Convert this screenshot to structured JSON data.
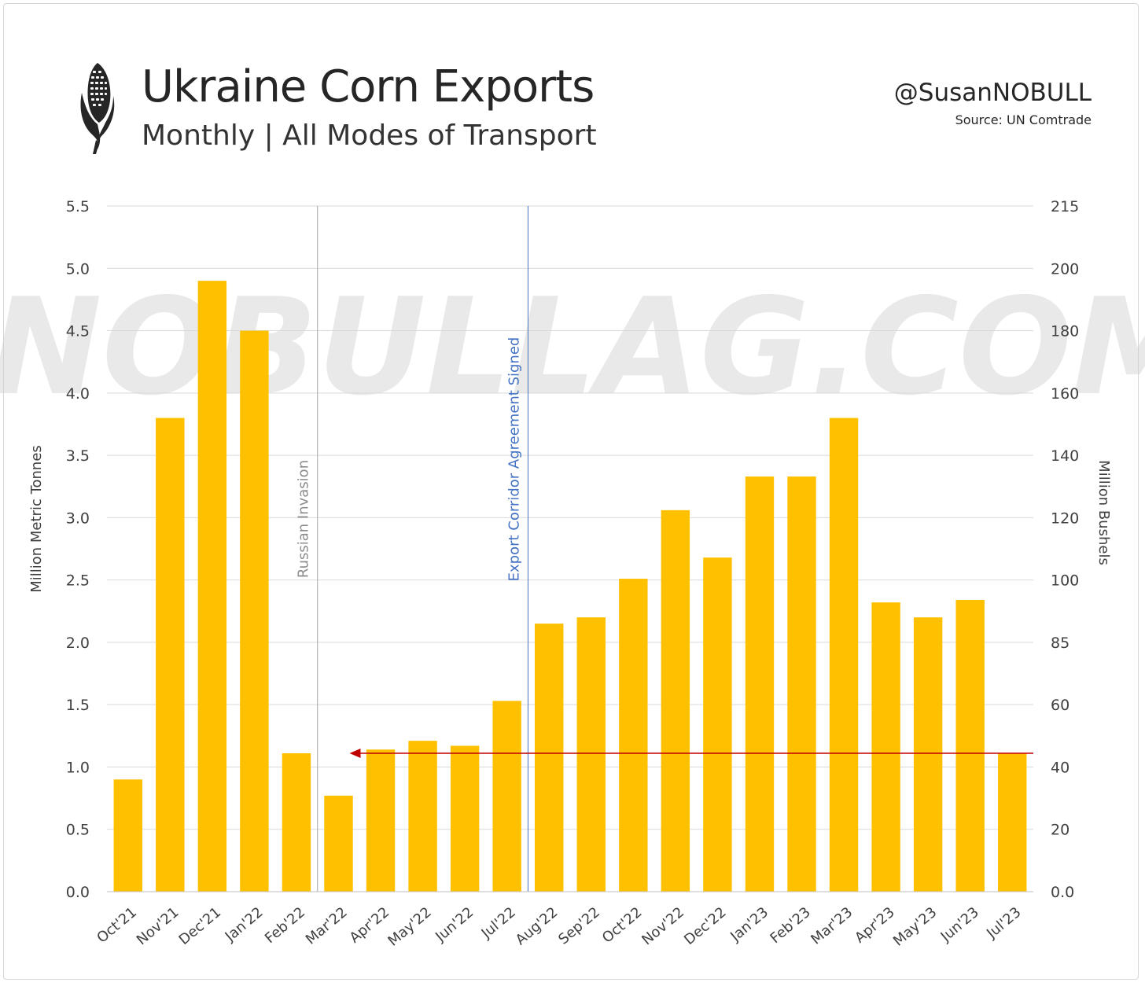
{
  "header": {
    "title": "Ukraine Corn Exports",
    "subtitle": "Monthly  |  All Modes of Transport",
    "handle": "@SusanNOBULL",
    "source": "Source: UN Comtrade",
    "logo_icon": "corn-cob-icon"
  },
  "watermark": "NOBULLAG.COM",
  "colors": {
    "bar": "#FFC000",
    "invasion_line": "#a6a6a6",
    "corridor_line": "#4472C4",
    "arrow": "#C00000",
    "grid": "#d9d9d9"
  },
  "chart_data": {
    "type": "bar",
    "categories": [
      "Oct'21",
      "Nov'21",
      "Dec'21",
      "Jan'22",
      "Feb'22",
      "Mar'22",
      "Apr'22",
      "May'22",
      "Jun'22",
      "Jul'22",
      "Aug'22",
      "Sep'22",
      "Oct'22",
      "Nov'22",
      "Dec'22",
      "Jan'23",
      "Feb'23",
      "Mar'23",
      "Apr'23",
      "May'23",
      "Jun'23",
      "Jul'23"
    ],
    "values": [
      0.9,
      3.8,
      4.9,
      4.5,
      1.11,
      0.77,
      1.14,
      1.21,
      1.17,
      1.53,
      2.15,
      2.2,
      2.51,
      3.06,
      2.68,
      3.33,
      3.33,
      3.8,
      2.32,
      2.2,
      2.34,
      1.11
    ],
    "ylabel": "Million Metric Tonnes",
    "ylabel_right": "Million Bushels",
    "ylim": [
      0,
      5.5
    ],
    "yticks": [
      "0.0",
      "0.5",
      "1.0",
      "1.5",
      "2.0",
      "2.5",
      "3.0",
      "3.5",
      "4.0",
      "4.5",
      "5.0",
      "5.5"
    ],
    "yticks_right": [
      "0.0",
      "20",
      "40",
      "60",
      "85",
      "100",
      "120",
      "140",
      "160",
      "180",
      "200",
      "215"
    ],
    "grid": true,
    "annotations": [
      {
        "text": "Russian Invasion",
        "between": [
          "Feb'22",
          "Mar'22"
        ]
      },
      {
        "text": "Export Corridor Agreement Signed",
        "between": [
          "Jul'22",
          "Aug'22"
        ]
      }
    ],
    "reference_arrow": {
      "value": 1.11,
      "from": "Jul'23",
      "to": "Mar'22"
    }
  }
}
